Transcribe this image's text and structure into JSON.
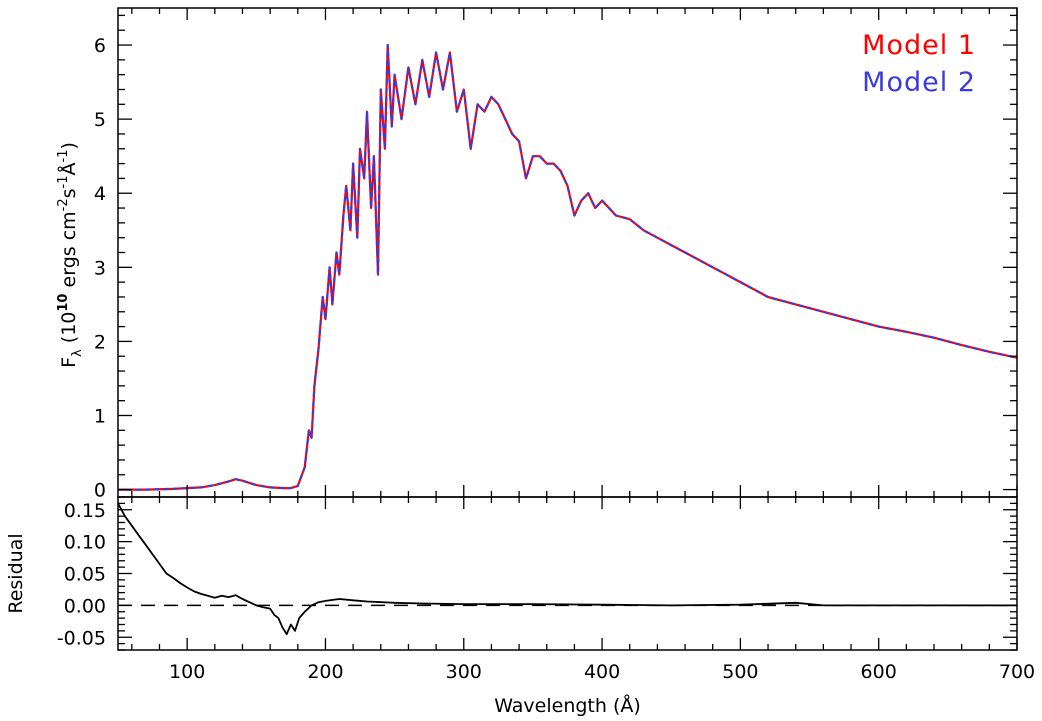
{
  "chart_data": [
    {
      "type": "line",
      "panel": "top",
      "title": "",
      "xlabel": "",
      "ylabel": {
        "main": "F",
        "sub": "λ",
        "open": " (10",
        "exp": "10",
        "mid": " ergs cm",
        "exp2": "-2",
        "s": "s",
        "exp3": "-1",
        "unit": "Å",
        "exp4": "-1",
        "close": ")"
      },
      "xlim": [
        50,
        700
      ],
      "ylim": [
        -0.1,
        6.5
      ],
      "yticks": [
        0,
        1,
        2,
        3,
        4,
        5,
        6
      ],
      "ytick_labels": [
        "0",
        "1",
        "2",
        "3",
        "4",
        "5",
        "6"
      ],
      "legend": {
        "placement": "top-right"
      },
      "series": [
        {
          "name": "Model 1",
          "color": "#ff0000",
          "style": "solid",
          "x": [
            50,
            70,
            90,
            110,
            120,
            130,
            135,
            140,
            145,
            150,
            160,
            170,
            175,
            180,
            185,
            188,
            190,
            192,
            195,
            198,
            200,
            203,
            205,
            208,
            210,
            213,
            215,
            218,
            220,
            223,
            225,
            228,
            230,
            233,
            235,
            238,
            240,
            243,
            245,
            248,
            250,
            255,
            260,
            265,
            270,
            275,
            280,
            285,
            290,
            295,
            300,
            305,
            310,
            315,
            320,
            325,
            330,
            335,
            340,
            345,
            350,
            355,
            360,
            365,
            370,
            375,
            380,
            385,
            390,
            395,
            400,
            410,
            420,
            430,
            440,
            450,
            460,
            470,
            480,
            490,
            500,
            520,
            540,
            560,
            580,
            600,
            620,
            640,
            660,
            680,
            700
          ],
          "y": [
            0.0,
            0.0,
            0.01,
            0.03,
            0.06,
            0.11,
            0.14,
            0.12,
            0.09,
            0.06,
            0.03,
            0.02,
            0.02,
            0.05,
            0.3,
            0.8,
            0.7,
            1.4,
            1.9,
            2.6,
            2.3,
            3.0,
            2.5,
            3.2,
            2.9,
            3.7,
            4.1,
            3.5,
            4.4,
            3.4,
            4.6,
            4.2,
            5.1,
            3.8,
            4.5,
            2.9,
            5.4,
            4.6,
            6.0,
            4.9,
            5.6,
            5.0,
            5.7,
            5.2,
            5.8,
            5.3,
            5.9,
            5.4,
            5.9,
            5.1,
            5.4,
            4.6,
            5.2,
            5.1,
            5.3,
            5.2,
            5.0,
            4.8,
            4.7,
            4.2,
            4.5,
            4.5,
            4.4,
            4.4,
            4.3,
            4.1,
            3.7,
            3.9,
            4.0,
            3.8,
            3.9,
            3.7,
            3.65,
            3.5,
            3.4,
            3.3,
            3.2,
            3.1,
            3.0,
            2.9,
            2.8,
            2.6,
            2.5,
            2.4,
            2.3,
            2.2,
            2.13,
            2.05,
            1.95,
            1.86,
            1.78
          ]
        },
        {
          "name": "Model 2",
          "color": "#3b3bdb",
          "style": "dashed",
          "x": [
            50,
            70,
            90,
            110,
            120,
            130,
            135,
            140,
            145,
            150,
            160,
            170,
            175,
            180,
            185,
            188,
            190,
            192,
            195,
            198,
            200,
            203,
            205,
            208,
            210,
            213,
            215,
            218,
            220,
            223,
            225,
            228,
            230,
            233,
            235,
            238,
            240,
            243,
            245,
            248,
            250,
            255,
            260,
            265,
            270,
            275,
            280,
            285,
            290,
            295,
            300,
            305,
            310,
            315,
            320,
            325,
            330,
            335,
            340,
            345,
            350,
            355,
            360,
            365,
            370,
            375,
            380,
            385,
            390,
            395,
            400,
            410,
            420,
            430,
            440,
            450,
            460,
            470,
            480,
            490,
            500,
            520,
            540,
            560,
            580,
            600,
            620,
            640,
            660,
            680,
            700
          ],
          "y": [
            0.0,
            0.0,
            0.01,
            0.03,
            0.06,
            0.11,
            0.14,
            0.12,
            0.09,
            0.06,
            0.03,
            0.02,
            0.02,
            0.05,
            0.3,
            0.8,
            0.7,
            1.4,
            1.9,
            2.6,
            2.3,
            3.0,
            2.5,
            3.2,
            2.9,
            3.7,
            4.1,
            3.5,
            4.4,
            3.4,
            4.6,
            4.2,
            5.1,
            3.8,
            4.5,
            2.9,
            5.4,
            4.6,
            6.0,
            4.9,
            5.6,
            5.0,
            5.7,
            5.2,
            5.8,
            5.3,
            5.9,
            5.4,
            5.9,
            5.1,
            5.4,
            4.6,
            5.2,
            5.1,
            5.3,
            5.2,
            5.0,
            4.8,
            4.7,
            4.2,
            4.5,
            4.5,
            4.4,
            4.4,
            4.3,
            4.1,
            3.7,
            3.9,
            4.0,
            3.8,
            3.9,
            3.7,
            3.65,
            3.5,
            3.4,
            3.3,
            3.2,
            3.1,
            3.0,
            2.9,
            2.8,
            2.6,
            2.5,
            2.4,
            2.3,
            2.2,
            2.13,
            2.05,
            1.95,
            1.86,
            1.78
          ]
        }
      ]
    },
    {
      "type": "line",
      "panel": "bottom",
      "title": "",
      "xlabel": "Wavelength (Å)",
      "ylabel": "Residual",
      "xlim": [
        50,
        700
      ],
      "ylim": [
        -0.07,
        0.17
      ],
      "xticks": [
        100,
        200,
        300,
        400,
        500,
        600,
        700
      ],
      "xtick_labels": [
        "100",
        "200",
        "300",
        "400",
        "500",
        "600",
        "700"
      ],
      "yticks": [
        -0.05,
        0.0,
        0.05,
        0.1,
        0.15
      ],
      "ytick_labels": [
        "-0.05",
        "0.00",
        "0.05",
        "0.10",
        "0.15"
      ],
      "reference_line": {
        "y": 0.0,
        "style": "dashed",
        "color": "#000000"
      },
      "series": [
        {
          "color": "#000000",
          "style": "solid",
          "x": [
            50,
            55,
            60,
            65,
            70,
            75,
            80,
            85,
            90,
            95,
            100,
            105,
            110,
            115,
            120,
            125,
            130,
            135,
            140,
            145,
            150,
            155,
            160,
            163,
            166,
            169,
            172,
            175,
            178,
            181,
            185,
            190,
            195,
            200,
            210,
            220,
            230,
            250,
            270,
            300,
            350,
            400,
            450,
            500,
            540,
            560,
            600,
            650,
            700
          ],
          "y": [
            0.16,
            0.14,
            0.125,
            0.11,
            0.095,
            0.08,
            0.065,
            0.05,
            0.043,
            0.035,
            0.028,
            0.022,
            0.018,
            0.015,
            0.012,
            0.015,
            0.013,
            0.016,
            0.01,
            0.005,
            0.0,
            -0.003,
            -0.005,
            -0.015,
            -0.02,
            -0.035,
            -0.045,
            -0.03,
            -0.04,
            -0.02,
            -0.01,
            0.0,
            0.005,
            0.007,
            0.01,
            0.008,
            0.006,
            0.004,
            0.003,
            0.002,
            0.002,
            0.001,
            0.0,
            0.001,
            0.004,
            0.0,
            0.0,
            0.0,
            0.0
          ]
        }
      ]
    }
  ]
}
